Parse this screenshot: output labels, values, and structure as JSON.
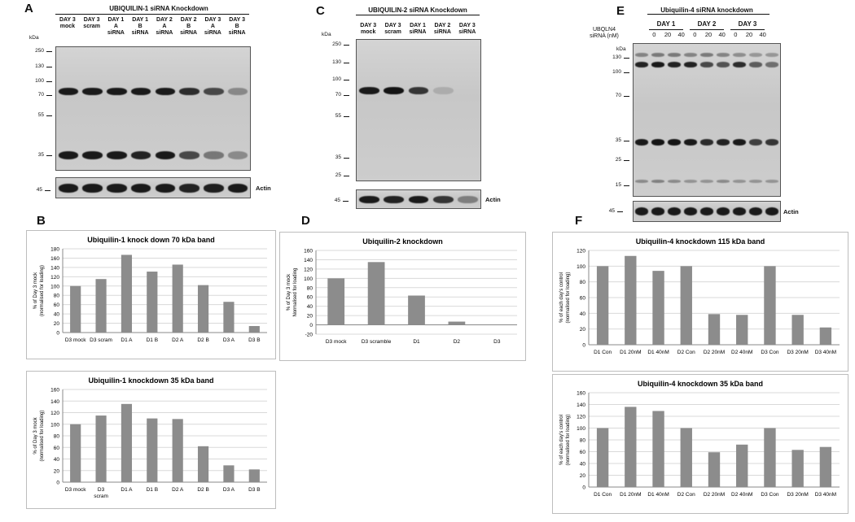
{
  "panels": {
    "A": {
      "letter": "A",
      "title": "UBIQUILIN-1 siRNA Knockdown",
      "kda_label": "kDa",
      "lanes": [
        [
          "DAY 3",
          "mock"
        ],
        [
          "DAY 3",
          "scram"
        ],
        [
          "DAY 1",
          "A",
          "siRNA"
        ],
        [
          "DAY 1",
          "B",
          "siRNA"
        ],
        [
          "DAY 2",
          "A",
          "siRNA"
        ],
        [
          "DAY 2",
          "B",
          "siRNA"
        ],
        [
          "DAY 3",
          "A",
          "siRNA"
        ],
        [
          "DAY 3",
          "B",
          "siRNA"
        ]
      ],
      "markers": [
        "250",
        "130",
        "100",
        "70",
        "55",
        "35"
      ],
      "actin_marker": "45",
      "actin_label": "Actin"
    },
    "C": {
      "letter": "C",
      "title": "UBIQUILIN-2 siRNA Knockdown",
      "kda_label": "kDa",
      "lanes": [
        [
          "DAY 3",
          "mock"
        ],
        [
          "DAY 3",
          "scram"
        ],
        [
          "DAY 1",
          "siRNA"
        ],
        [
          "DAY 2",
          "siRNA"
        ],
        [
          "DAY 3",
          "siRNA"
        ]
      ],
      "markers": [
        "250",
        "130",
        "100",
        "70",
        "55",
        "35",
        "25"
      ],
      "actin_marker": "45",
      "actin_label": "Actin"
    },
    "E": {
      "letter": "E",
      "title": "Ubiquilin-4 siRNA knockdown",
      "kda_label": "kDa",
      "siRNA_label": [
        "UBQLN4",
        "siRNA (nM)"
      ],
      "days": [
        "DAY 1",
        "DAY 2",
        "DAY 3"
      ],
      "doses": [
        "0",
        "20",
        "40",
        "0",
        "20",
        "40",
        "0",
        "20",
        "40"
      ],
      "markers": [
        "130",
        "100",
        "70",
        "35",
        "25",
        "15"
      ],
      "actin_marker": "45",
      "actin_label": "Actin"
    },
    "B": {
      "letter": "B"
    },
    "D": {
      "letter": "D"
    },
    "F": {
      "letter": "F"
    }
  },
  "chart_data": [
    {
      "id": "B1",
      "type": "bar",
      "title": "Ubiquilin-1 knock down 70 kDa band",
      "ylabel": [
        "% of Day 3 mock",
        "(normalised for loading)"
      ],
      "ylim": [
        0,
        180
      ],
      "yticks": [
        0,
        20,
        40,
        60,
        80,
        100,
        120,
        140,
        160,
        180
      ],
      "categories": [
        "D3 mock",
        "D3 scram",
        "D1 A",
        "D1 B",
        "D2 A",
        "D2 B",
        "D3 A",
        "D3 B"
      ],
      "values": [
        100,
        115,
        167,
        131,
        146,
        102,
        66,
        14
      ],
      "grid": true,
      "color": "#8c8c8c"
    },
    {
      "id": "B2",
      "type": "bar",
      "title": "Ubiquilin-1 knockdown 35 kDa band",
      "ylabel": [
        "% of Day 3 mock",
        "(normalised for loading)"
      ],
      "ylim": [
        0,
        160
      ],
      "yticks": [
        0,
        20,
        40,
        60,
        80,
        100,
        120,
        140,
        160
      ],
      "categories": [
        "D3 mock",
        "D3 scram",
        "D1 A",
        "D1 B",
        "D2 A",
        "D2 B",
        "D3 A",
        "D3 B"
      ],
      "category_lines": [
        [
          "D3 mock"
        ],
        [
          "D3",
          "scram"
        ],
        [
          "D1 A"
        ],
        [
          "D1 B"
        ],
        [
          "D2 A"
        ],
        [
          "D2 B"
        ],
        [
          "D3 A"
        ],
        [
          "D3 B"
        ]
      ],
      "values": [
        100,
        115,
        135,
        110,
        109,
        62,
        29,
        22
      ],
      "grid": true,
      "color": "#8c8c8c"
    },
    {
      "id": "D",
      "type": "bar",
      "title": "Ubiquilin-2 knockdown",
      "ylabel": [
        "% of Day 3 mock",
        "Normalised for loading"
      ],
      "ylim": [
        -20,
        160
      ],
      "yticks": [
        -20,
        0,
        20,
        40,
        60,
        80,
        100,
        120,
        140,
        160
      ],
      "categories": [
        "D3 mock",
        "D3 scramble",
        "D1",
        "D2",
        "D3"
      ],
      "values": [
        100,
        135,
        63,
        7,
        0
      ],
      "grid": true,
      "color": "#8c8c8c"
    },
    {
      "id": "F1",
      "type": "bar",
      "title": "Ubiquilin-4 knockdown 115 kDa band",
      "ylabel": [
        "% of each day's control",
        "(normalised for loading)"
      ],
      "ylim": [
        0,
        120
      ],
      "yticks": [
        0,
        20,
        40,
        60,
        80,
        100,
        120
      ],
      "categories": [
        "D1 Con",
        "D1 20nM",
        "D1 40nM",
        "D2 Con",
        "D2 20nM",
        "D2 40nM",
        "D3 Con",
        "D3 20nM",
        "D3 40nM"
      ],
      "values": [
        100,
        113,
        94,
        100,
        39,
        38,
        100,
        38,
        22
      ],
      "grid": true,
      "color": "#8c8c8c"
    },
    {
      "id": "F2",
      "type": "bar",
      "title": "Ubiquilin-4 knockdown 35 kDa band",
      "ylabel": [
        "% of each day's control",
        "(normalised for loading)"
      ],
      "ylim": [
        0,
        160
      ],
      "yticks": [
        0,
        20,
        40,
        60,
        80,
        100,
        120,
        140,
        160
      ],
      "categories": [
        "D1 Con",
        "D1 20nM",
        "D1 40nM",
        "D2 Con",
        "D2 20nM",
        "D2 40nM",
        "D3 Con",
        "D3 20nM",
        "D3 40nM"
      ],
      "values": [
        100,
        136,
        129,
        100,
        59,
        72,
        100,
        63,
        68
      ],
      "grid": true,
      "color": "#8c8c8c"
    }
  ]
}
